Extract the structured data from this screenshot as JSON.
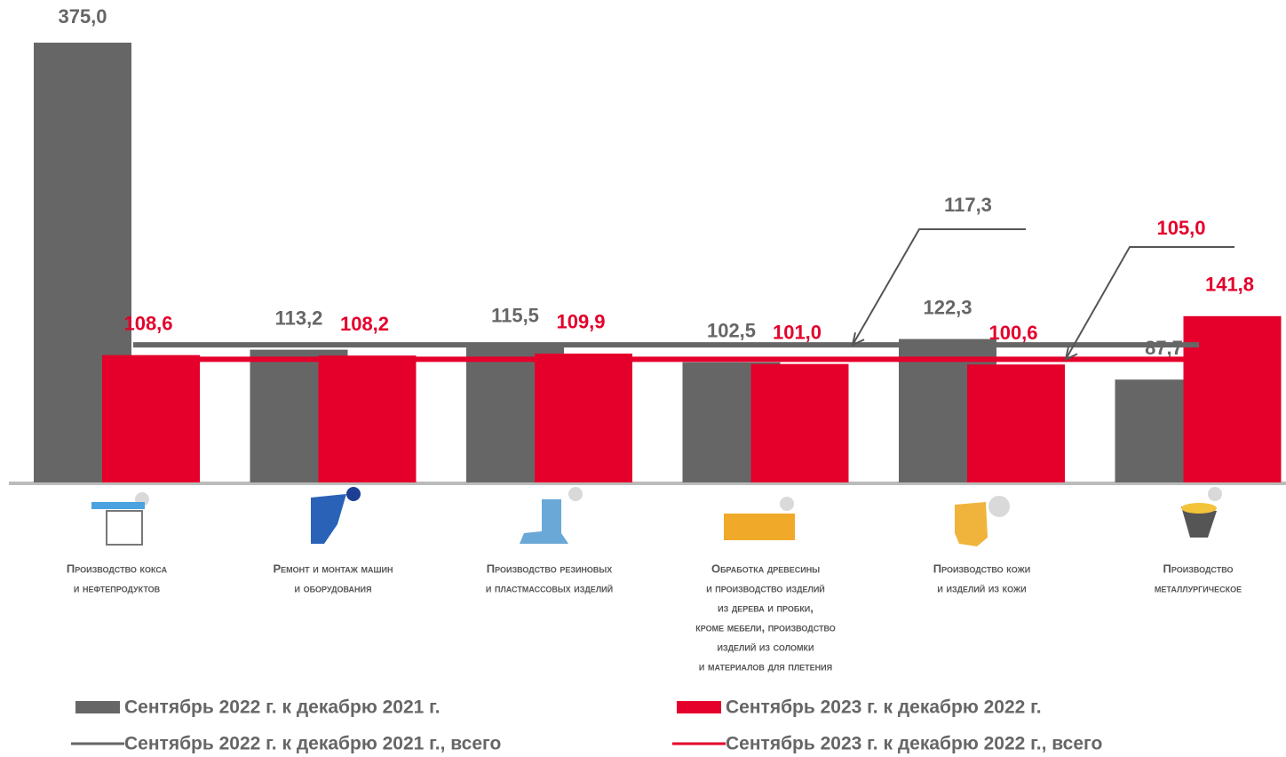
{
  "chart_data": {
    "type": "bar",
    "categories": [
      [
        "Производство кокса",
        "и нефтепродуктов"
      ],
      [
        "Ремонт и монтаж машин",
        "и оборудования"
      ],
      [
        "Производство резиновых",
        "и пластмассовых изделий"
      ],
      [
        "Обработка древесины",
        "и производство изделий",
        "из дерева и пробки,",
        "кроме мебели, производство",
        "изделий из соломки",
        "и материалов для плетения"
      ],
      [
        "Производство кожи",
        "и изделий из кожи"
      ],
      [
        "Производство",
        "металлургическое"
      ]
    ],
    "series": [
      {
        "name": "Сентябрь 2022 г. к декабрю 2021 г.",
        "color": "#666666",
        "values": [
          375.0,
          113.2,
          115.5,
          102.5,
          122.3,
          87.7
        ],
        "value_labels": [
          "375,0",
          "113,2",
          "115,5",
          "102,5",
          "122,3",
          "87,7"
        ]
      },
      {
        "name": "Сентябрь 2023 г. к декабрю 2022 г.",
        "color": "#e4002b",
        "values": [
          108.6,
          108.2,
          109.9,
          101.0,
          100.6,
          141.8
        ],
        "value_labels": [
          "108,6",
          "108,2",
          "109,9",
          "101,0",
          "100,6",
          "141,8"
        ]
      }
    ],
    "lines": [
      {
        "name": "Сентябрь 2022 г. к декабрю 2021 г., всего",
        "color": "#666666",
        "value": 117.3,
        "value_label": "117,3"
      },
      {
        "name": "Сентябрь 2023 г. к декабрю 2022 г., всего",
        "color": "#e4002b",
        "value": 105.0,
        "value_label": "105,0"
      }
    ]
  }
}
